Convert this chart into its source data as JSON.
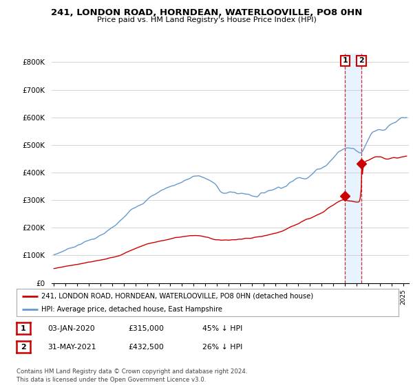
{
  "title": "241, LONDON ROAD, HORNDEAN, WATERLOOVILLE, PO8 0HN",
  "subtitle": "Price paid vs. HM Land Registry's House Price Index (HPI)",
  "ylabel_ticks": [
    "£0",
    "£100K",
    "£200K",
    "£300K",
    "£400K",
    "£500K",
    "£600K",
    "£700K",
    "£800K"
  ],
  "ytick_values": [
    0,
    100000,
    200000,
    300000,
    400000,
    500000,
    600000,
    700000,
    800000
  ],
  "ylim": [
    0,
    830000
  ],
  "xlim_start": 1994.8,
  "xlim_end": 2025.5,
  "sale1": {
    "date_x": 2020.01,
    "price": 315000,
    "label": "1"
  },
  "sale2": {
    "date_x": 2021.42,
    "price": 432500,
    "label": "2"
  },
  "legend_entry1": "241, LONDON ROAD, HORNDEAN, WATERLOOVILLE, PO8 0HN (detached house)",
  "legend_entry2": "HPI: Average price, detached house, East Hampshire",
  "table_row1": [
    "1",
    "03-JAN-2020",
    "£315,000",
    "45% ↓ HPI"
  ],
  "table_row2": [
    "2",
    "31-MAY-2021",
    "£432,500",
    "26% ↓ HPI"
  ],
  "footer": "Contains HM Land Registry data © Crown copyright and database right 2024.\nThis data is licensed under the Open Government Licence v3.0.",
  "color_red": "#cc0000",
  "color_blue": "#6699cc",
  "color_shade": "#ddeeff",
  "background_color": "#ffffff",
  "grid_color": "#cccccc"
}
